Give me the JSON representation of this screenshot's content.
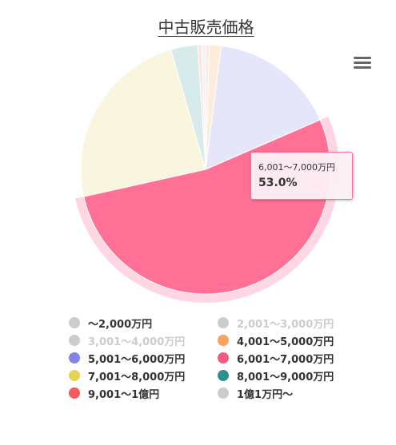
{
  "chart_data": {
    "type": "pie",
    "title": "中古販売価格",
    "series": [
      {
        "name": "～2,000万円",
        "value": 0.5,
        "color": "#cccccc",
        "fill": "#fde9e5",
        "visible": true
      },
      {
        "name": "2,001～3,000万円",
        "value": 0,
        "color": "#cccccc",
        "fill": "#eeeeee",
        "visible": false
      },
      {
        "name": "3,001～4,000万円",
        "value": 0,
        "color": "#cccccc",
        "fill": "#eeeeee",
        "visible": false
      },
      {
        "name": "4,001～5,000万円",
        "value": 1.5,
        "color": "#f7a35c",
        "fill": "#fdebdc",
        "visible": true
      },
      {
        "name": "5,001～6,000万円",
        "value": 16.5,
        "color": "#8085e9",
        "fill": "#e6e6fb",
        "visible": true
      },
      {
        "name": "6,001～7,000万円",
        "value": 53.0,
        "color": "#f15c80",
        "fill": "#ff7096",
        "visible": true
      },
      {
        "name": "7,001～8,000万円",
        "value": 24.0,
        "color": "#e4d354",
        "fill": "#faf5de",
        "visible": true
      },
      {
        "name": "8,001～9,000万円",
        "value": 3.5,
        "color": "#2b908f",
        "fill": "#d6ebea",
        "visible": true
      },
      {
        "name": "9,001～1億円",
        "value": 0.5,
        "color": "#f45b5b",
        "fill": "#fde3e3",
        "visible": true
      },
      {
        "name": "1億1万円～",
        "value": 0.5,
        "color": "#cccccc",
        "fill": "#f3f3f3",
        "visible": true
      }
    ],
    "legend": "bottom",
    "highlighted_series": 5,
    "value_unit": "%"
  },
  "tooltip": {
    "label": "6,001～7,000万円",
    "value": "53.0%"
  },
  "menu": {
    "icon": "hamburger-menu-icon"
  }
}
